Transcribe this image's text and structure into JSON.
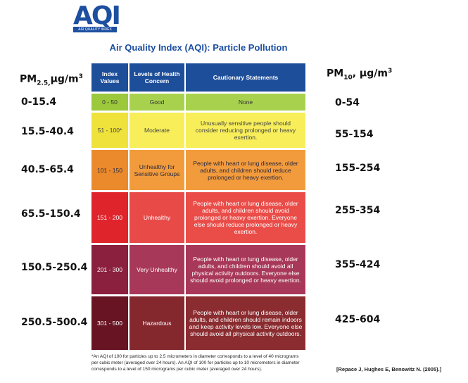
{
  "logo": {
    "mark": "AQI",
    "caption": "AIR QUALITY INDEX"
  },
  "title": "Air Quality Index (AQI): Particle Pollution",
  "table": {
    "headers": [
      "Index Values",
      "Levels of Health Concern",
      "Cautionary Statements"
    ],
    "rows": [
      [
        "0 - 50",
        "Good",
        "None"
      ],
      [
        "51 - 100*",
        "Moderate",
        "Unusually sensitive people should consider reducing prolonged or heavy exertion."
      ],
      [
        "101 - 150",
        "Unhealthy for Sensitive Groups",
        "People with heart or lung disease, older adults, and children should reduce prolonged or heavy exertion."
      ],
      [
        "151 - 200",
        "Unhealthy",
        "People with heart or lung disease, older adults, and children should avoid prolonged or heavy exertion. Everyone else should reduce prolonged or heavy exertion."
      ],
      [
        "201 - 300",
        "Very Unhealthy",
        "People with heart or lung disease, older adults, and children should avoid all physical activity outdoors. Everyone else should avoid prolonged or heavy exertion."
      ],
      [
        "301 - 500",
        "Hazardous",
        "People with heart or lung disease, older adults, and children should remain indoors and keep activity levels low. Everyone else should avoid all physical activity outdoors."
      ]
    ]
  },
  "pm25": {
    "label": {
      "pm": "PM",
      "sub": "2.5,",
      "unit": "μg/m",
      "sup": "3"
    },
    "ranges": [
      "0-15.4",
      "15.5-40.4",
      "40.5-65.4",
      "65.5-150.4",
      "150.5-250.4",
      "250.5-500.4"
    ]
  },
  "pm10": {
    "label": {
      "pm": "PM",
      "sub": "10",
      "unit": ", μg/m",
      "sup": "3"
    },
    "ranges": [
      "0-54",
      "55-154",
      "155-254",
      "255-354",
      "355-424",
      "425-604"
    ]
  },
  "footnote": "*An AQI of 100 for particles up to 2.5 micrometers in diameter corresponds to a level of 40 micrograms per cubic meter (averaged over 24 hours). An AQI of 100 for particles up to 10 micrometers in diameter corresponds to a level of 150 micrograms per cubic meter (averaged over 24 hours).",
  "citation": "[Repace J, Hughes E, Benowitz N.  (2005).]"
}
